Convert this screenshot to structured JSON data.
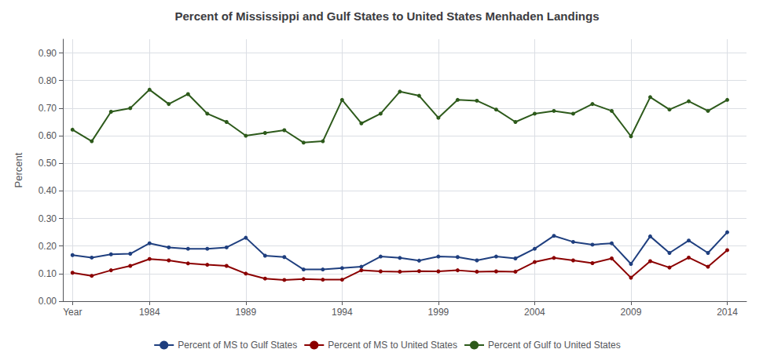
{
  "chart_data": {
    "type": "line",
    "title": "Percent of Mississippi and Gulf States to United States Menhaden Landings",
    "ylabel": "Percent",
    "x": [
      1980,
      1981,
      1982,
      1983,
      1984,
      1985,
      1986,
      1987,
      1988,
      1989,
      1990,
      1991,
      1992,
      1993,
      1994,
      1995,
      1996,
      1997,
      1998,
      1999,
      2000,
      2001,
      2002,
      2003,
      2004,
      2005,
      2006,
      2007,
      2008,
      2009,
      2010,
      2011,
      2012,
      2013,
      2014
    ],
    "series": [
      {
        "name": "Percent of MS to Gulf States",
        "color": "#1F3F7F",
        "values": [
          0.167,
          0.158,
          0.17,
          0.172,
          0.21,
          0.195,
          0.19,
          0.19,
          0.195,
          0.23,
          0.165,
          0.16,
          0.115,
          0.115,
          0.12,
          0.125,
          0.162,
          0.157,
          0.147,
          0.162,
          0.16,
          0.148,
          0.162,
          0.155,
          0.19,
          0.237,
          0.215,
          0.205,
          0.21,
          0.135,
          0.235,
          0.175,
          0.22,
          0.175,
          0.25
        ]
      },
      {
        "name": "Percent of MS to United States",
        "color": "#8B0000",
        "values": [
          0.103,
          0.092,
          0.112,
          0.128,
          0.153,
          0.148,
          0.137,
          0.132,
          0.128,
          0.1,
          0.082,
          0.077,
          0.08,
          0.078,
          0.078,
          0.112,
          0.108,
          0.107,
          0.109,
          0.108,
          0.112,
          0.107,
          0.108,
          0.107,
          0.142,
          0.157,
          0.148,
          0.138,
          0.155,
          0.085,
          0.145,
          0.122,
          0.158,
          0.125,
          0.185
        ]
      },
      {
        "name": "Percent of Gulf to United States",
        "color": "#2D5A1B",
        "values": [
          0.622,
          0.58,
          0.687,
          0.7,
          0.767,
          0.715,
          0.751,
          0.68,
          0.65,
          0.6,
          0.61,
          0.62,
          0.575,
          0.58,
          0.73,
          0.645,
          0.68,
          0.76,
          0.745,
          0.665,
          0.73,
          0.727,
          0.695,
          0.65,
          0.68,
          0.69,
          0.68,
          0.715,
          0.69,
          0.598,
          0.74,
          0.695,
          0.725,
          0.69,
          0.73
        ]
      }
    ],
    "xlim": [
      1979.5,
      2015.0
    ],
    "xticks": [
      {
        "value": 1980,
        "label": "Year"
      },
      1984,
      1989,
      1994,
      1999,
      2004,
      2009,
      2014
    ],
    "ylim": [
      0.0,
      0.95
    ],
    "yticks": [
      {
        "value": 0.0,
        "label": "0.00"
      },
      {
        "value": 0.1,
        "label": "0.10"
      },
      {
        "value": 0.2,
        "label": "0.20"
      },
      {
        "value": 0.3,
        "label": "0.30"
      },
      {
        "value": 0.4,
        "label": "0.40"
      },
      {
        "value": 0.5,
        "label": "0.50"
      },
      {
        "value": 0.6,
        "label": "0.60"
      },
      {
        "value": 0.7,
        "label": "0.70"
      },
      {
        "value": 0.8,
        "label": "0.80"
      },
      {
        "value": 0.9,
        "label": "0.90"
      }
    ],
    "grid": true,
    "legend": "bottom",
    "marker": "circle"
  }
}
